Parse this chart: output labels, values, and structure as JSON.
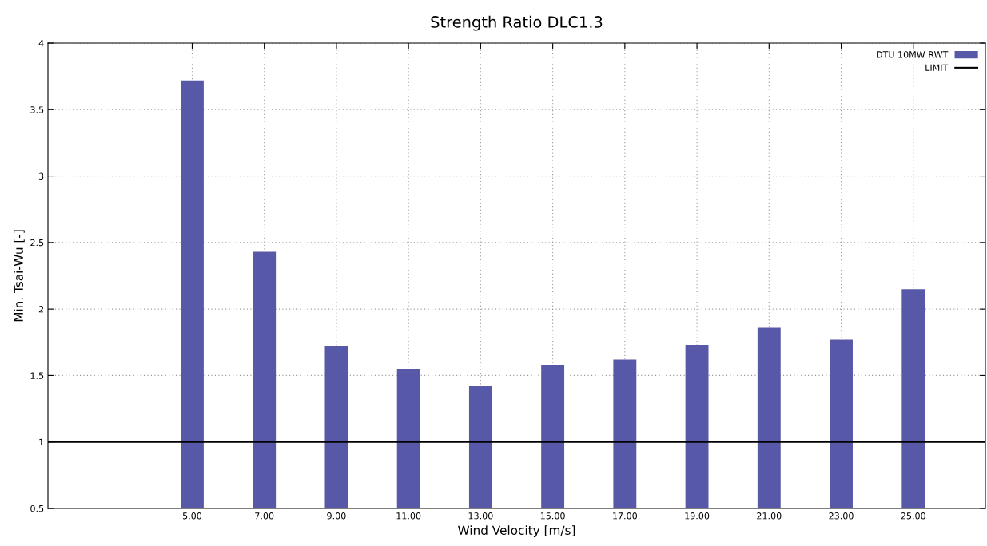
{
  "chart_data": {
    "type": "bar",
    "title": "Strength Ratio DLC1.3",
    "xlabel": "Wind Velocity [m/s]",
    "ylabel": "Min. Tsai-Wu [-]",
    "x": [
      5,
      7,
      9,
      11,
      13,
      15,
      17,
      19,
      21,
      23,
      25
    ],
    "series": [
      {
        "name": "DTU 10MW RWT",
        "color": "#5858a8",
        "values": [
          3.72,
          2.43,
          1.72,
          1.55,
          1.42,
          1.58,
          1.62,
          1.73,
          1.86,
          1.77,
          2.15
        ]
      }
    ],
    "xlim": [
      1,
      27
    ],
    "ylim": [
      0.5,
      4
    ],
    "xticks": [
      {
        "value": 5,
        "label": "5.00"
      },
      {
        "value": 7,
        "label": "7.00"
      },
      {
        "value": 9,
        "label": "9.00"
      },
      {
        "value": 11,
        "label": "11.00"
      },
      {
        "value": 13,
        "label": "13.00"
      },
      {
        "value": 15,
        "label": "15.00"
      },
      {
        "value": 17,
        "label": "17.00"
      },
      {
        "value": 19,
        "label": "19.00"
      },
      {
        "value": 21,
        "label": "21.00"
      },
      {
        "value": 23,
        "label": "23.00"
      },
      {
        "value": 25,
        "label": "25.00"
      }
    ],
    "yticks": [
      0.5,
      1,
      1.5,
      2,
      2.5,
      3,
      3.5,
      4
    ],
    "ref_lines": [
      {
        "axis": "y",
        "value": 1,
        "label": "LIMIT",
        "color": "#000000",
        "line_style": "solid"
      }
    ],
    "grid": true,
    "legend": "top right"
  }
}
